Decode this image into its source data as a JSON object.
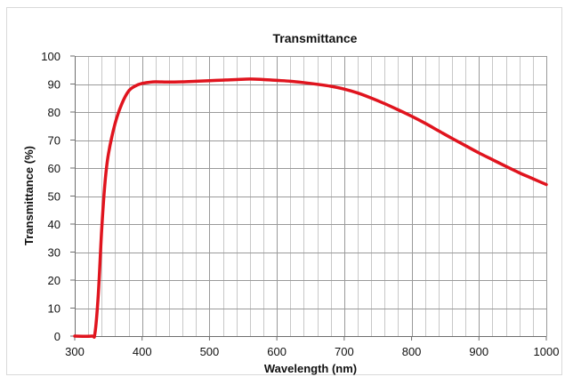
{
  "chart_data": {
    "type": "line",
    "title": "Transmittance",
    "xlabel": "Wavelength (nm)",
    "ylabel": "Transmittance (%)",
    "xlim": [
      300,
      1000
    ],
    "ylim": [
      0,
      100
    ],
    "x_major_ticks": [
      300,
      400,
      500,
      600,
      700,
      800,
      900,
      1000
    ],
    "x_minor_step": 20,
    "y_ticks": [
      0,
      10,
      20,
      30,
      40,
      50,
      60,
      70,
      80,
      90,
      100
    ],
    "grid": true,
    "legend": "none",
    "series": [
      {
        "color": "#e0141e",
        "x": [
          300,
          325,
          330,
          335,
          340,
          345,
          350,
          360,
          370,
          380,
          390,
          400,
          410,
          420,
          440,
          460,
          480,
          500,
          520,
          540,
          560,
          580,
          600,
          620,
          640,
          660,
          680,
          700,
          720,
          740,
          760,
          780,
          800,
          820,
          840,
          860,
          880,
          900,
          920,
          940,
          960,
          980,
          1000
        ],
        "y": [
          0,
          0,
          1,
          15,
          38,
          55,
          65,
          76,
          83,
          87.5,
          89.3,
          90.2,
          90.6,
          90.8,
          90.7,
          90.8,
          91,
          91.2,
          91.4,
          91.6,
          91.8,
          91.6,
          91.3,
          91,
          90.5,
          89.9,
          89.2,
          88.2,
          86.8,
          85,
          83,
          80.8,
          78.5,
          76,
          73.3,
          70.6,
          68,
          65.4,
          63,
          60.6,
          58.3,
          56.2,
          54.1
        ]
      }
    ]
  }
}
